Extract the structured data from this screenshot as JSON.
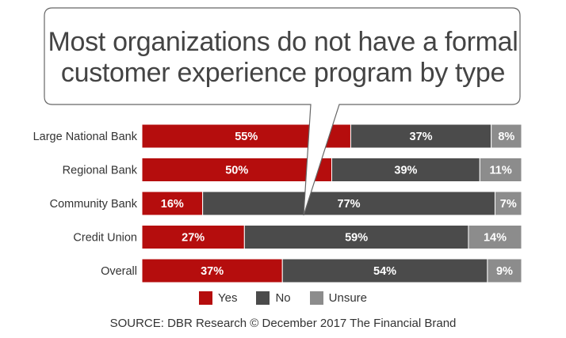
{
  "colors": {
    "yes": "#b50d0d",
    "no": "#4b4b4b",
    "unsure": "#8c8c8c"
  },
  "title_line1": "Most organizations do not have a formal",
  "title_line2": "customer experience program by type",
  "legend": [
    {
      "key": "yes",
      "label": "Yes"
    },
    {
      "key": "no",
      "label": "No"
    },
    {
      "key": "unsure",
      "label": "Unsure"
    }
  ],
  "source": "SOURCE: DBR Research  © December 2017 The Financial Brand",
  "chart_data": {
    "type": "bar",
    "orientation": "horizontal",
    "stacked": "100%",
    "categories": [
      "Large National Bank",
      "Regional Bank",
      "Community Bank",
      "Credit Union",
      "Overall"
    ],
    "series": [
      {
        "name": "Yes",
        "values": [
          55,
          50,
          16,
          27,
          37
        ],
        "labels": [
          "55%",
          "50%",
          "16%",
          "27%",
          "37%"
        ]
      },
      {
        "name": "No",
        "values": [
          37,
          39,
          77,
          59,
          54
        ],
        "labels": [
          "37%",
          "39%",
          "77%",
          "59%",
          "54%"
        ]
      },
      {
        "name": "Unsure",
        "values": [
          8,
          11,
          7,
          14,
          9
        ],
        "labels": [
          "8%",
          "11%",
          "7%",
          "14%",
          "9%"
        ]
      }
    ],
    "xlim": [
      0,
      100
    ],
    "grid": false,
    "legend_position": "bottom"
  }
}
